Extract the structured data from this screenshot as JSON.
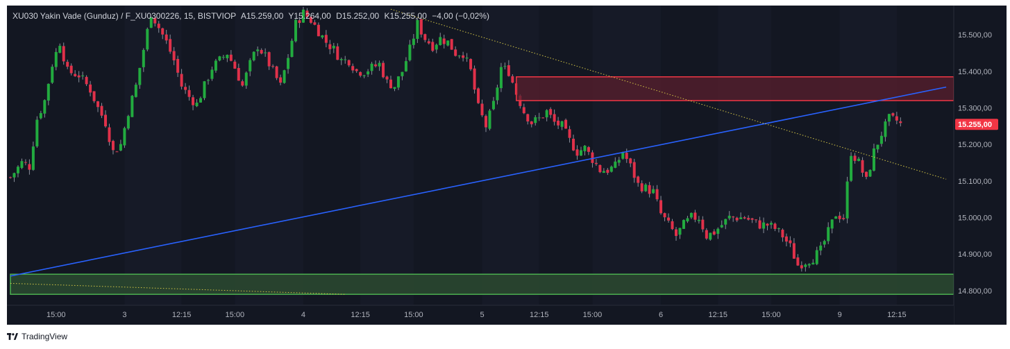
{
  "header": {
    "symbol": "XU030 Yakin Vade  (Gunduz) / F_XU0300226, 15, BISTVIOP",
    "open": "A15.259,00",
    "high": "Y15.264,00",
    "low": "D15.252,00",
    "close": "K15.255,00",
    "change": "−4,00 (−0,02%)"
  },
  "brand": {
    "name": "TradingView",
    "icon": "tradingview-logo-icon"
  },
  "colors": {
    "background": "#131722",
    "plot_background": "#131722",
    "band": "#161a27",
    "up": "#26a69a",
    "up_candle": "#22ab3f",
    "down": "#e0314a",
    "trendline": "#2962ff",
    "dotted": "#d4c646",
    "resistance_fill": "#5a1f2e",
    "resistance_border": "#f23645",
    "support_fill": "#2c4a30",
    "support_border": "#4caf50",
    "axis_text": "#b2b5be",
    "price_tag": "#f23645"
  },
  "chart_data": {
    "type": "candlestick",
    "title": "XU030 Yakin Vade  (Gunduz) / F_XU0300226, 15, BISTVIOP",
    "y_axis": {
      "min": 14760,
      "max": 15580,
      "ticks": [
        14800,
        14900,
        15000,
        15100,
        15200,
        15300,
        15400,
        15500
      ],
      "tick_labels": [
        "14.800,00",
        "14.900,00",
        "15.000,00",
        "15.100,00",
        "15.200,00",
        "15.300,00",
        "15.400,00",
        "15.500,00"
      ],
      "position": "right"
    },
    "x_axis": {
      "bar_count": 240,
      "ticks": [
        {
          "bar": 12,
          "label": "15:00"
        },
        {
          "bar": 30,
          "label": "3"
        },
        {
          "bar": 45,
          "label": "12:15"
        },
        {
          "bar": 59,
          "label": "15:00"
        },
        {
          "bar": 77,
          "label": "4"
        },
        {
          "bar": 92,
          "label": "12:15"
        },
        {
          "bar": 106,
          "label": "15:00"
        },
        {
          "bar": 124,
          "label": "5"
        },
        {
          "bar": 139,
          "label": "12:15"
        },
        {
          "bar": 153,
          "label": "15:00"
        },
        {
          "bar": 171,
          "label": "6"
        },
        {
          "bar": 186,
          "label": "12:15"
        },
        {
          "bar": 200,
          "label": "15:00"
        },
        {
          "bar": 218,
          "label": "9"
        },
        {
          "bar": 233,
          "label": "12:15"
        }
      ]
    },
    "last_price": {
      "value": 15255,
      "label": "15.255,00"
    },
    "zones": [
      {
        "name": "resistance-zone",
        "from_bar": 133,
        "y_low": 15320,
        "y_high": 15385,
        "kind": "resistance"
      },
      {
        "name": "support-zone",
        "from_bar": 0,
        "y_low": 14790,
        "y_high": 14845,
        "kind": "support"
      }
    ],
    "lines": [
      {
        "name": "rising-trendline",
        "style": "solid",
        "from": {
          "bar": 0,
          "y": 14840
        },
        "to": {
          "bar": 246,
          "y": 15357
        }
      },
      {
        "name": "falling-trendline",
        "style": "dotted",
        "from": {
          "bar": 100,
          "y": 15570
        },
        "to": {
          "bar": 246,
          "y": 15105
        }
      },
      {
        "name": "lower-dotted-line",
        "style": "dotted",
        "from": {
          "bar": 0,
          "y": 14820
        },
        "to": {
          "bar": 88,
          "y": 14790
        }
      }
    ],
    "close_path": [
      [
        0,
        15110
      ],
      [
        3,
        15150
      ],
      [
        5,
        15140
      ],
      [
        7,
        15270
      ],
      [
        9,
        15320
      ],
      [
        11,
        15420
      ],
      [
        13,
        15480
      ],
      [
        15,
        15400
      ],
      [
        18,
        15390
      ],
      [
        21,
        15350
      ],
      [
        23,
        15300
      ],
      [
        25,
        15260
      ],
      [
        27,
        15180
      ],
      [
        29,
        15200
      ],
      [
        31,
        15290
      ],
      [
        33,
        15360
      ],
      [
        35,
        15460
      ],
      [
        37,
        15560
      ],
      [
        39,
        15520
      ],
      [
        41,
        15480
      ],
      [
        43,
        15430
      ],
      [
        45,
        15360
      ],
      [
        47,
        15330
      ],
      [
        49,
        15310
      ],
      [
        51,
        15360
      ],
      [
        53,
        15410
      ],
      [
        55,
        15430
      ],
      [
        57,
        15450
      ],
      [
        59,
        15410
      ],
      [
        61,
        15360
      ],
      [
        63,
        15420
      ],
      [
        65,
        15470
      ],
      [
        67,
        15440
      ],
      [
        69,
        15400
      ],
      [
        71,
        15360
      ],
      [
        73,
        15440
      ],
      [
        75,
        15530
      ],
      [
        77,
        15560
      ],
      [
        79,
        15540
      ],
      [
        81,
        15510
      ],
      [
        83,
        15480
      ],
      [
        85,
        15460
      ],
      [
        87,
        15430
      ],
      [
        89,
        15430
      ],
      [
        91,
        15400
      ],
      [
        93,
        15400
      ],
      [
        95,
        15410
      ],
      [
        97,
        15420
      ],
      [
        99,
        15370
      ],
      [
        101,
        15360
      ],
      [
        103,
        15400
      ],
      [
        105,
        15460
      ],
      [
        107,
        15530
      ],
      [
        109,
        15490
      ],
      [
        111,
        15470
      ],
      [
        113,
        15490
      ],
      [
        115,
        15480
      ],
      [
        117,
        15450
      ],
      [
        119,
        15450
      ],
      [
        121,
        15400
      ],
      [
        123,
        15300
      ],
      [
        125,
        15250
      ],
      [
        127,
        15310
      ],
      [
        129,
        15410
      ],
      [
        131,
        15400
      ],
      [
        133,
        15340
      ],
      [
        135,
        15290
      ],
      [
        137,
        15260
      ],
      [
        139,
        15270
      ],
      [
        141,
        15290
      ],
      [
        143,
        15260
      ],
      [
        145,
        15250
      ],
      [
        147,
        15210
      ],
      [
        149,
        15180
      ],
      [
        151,
        15190
      ],
      [
        153,
        15160
      ],
      [
        155,
        15130
      ],
      [
        157,
        15130
      ],
      [
        159,
        15140
      ],
      [
        161,
        15180
      ],
      [
        163,
        15140
      ],
      [
        165,
        15090
      ],
      [
        167,
        15080
      ],
      [
        169,
        15070
      ],
      [
        171,
        15010
      ],
      [
        173,
        14980
      ],
      [
        175,
        14950
      ],
      [
        177,
        14980
      ],
      [
        179,
        15000
      ],
      [
        181,
        15000
      ],
      [
        183,
        14950
      ],
      [
        185,
        14960
      ],
      [
        187,
        14980
      ],
      [
        189,
        15000
      ],
      [
        191,
        15000
      ],
      [
        193,
        15000
      ],
      [
        195,
        14990
      ],
      [
        197,
        14980
      ],
      [
        199,
        14980
      ],
      [
        201,
        14970
      ],
      [
        203,
        14950
      ],
      [
        205,
        14920
      ],
      [
        207,
        14870
      ],
      [
        209,
        14880
      ],
      [
        211,
        14890
      ],
      [
        213,
        14910
      ],
      [
        215,
        14960
      ],
      [
        217,
        15010
      ],
      [
        219,
        15000
      ],
      [
        221,
        15180
      ],
      [
        223,
        15150
      ],
      [
        225,
        15100
      ],
      [
        227,
        15180
      ],
      [
        229,
        15230
      ],
      [
        231,
        15270
      ],
      [
        233,
        15265
      ],
      [
        234,
        15255
      ]
    ]
  }
}
